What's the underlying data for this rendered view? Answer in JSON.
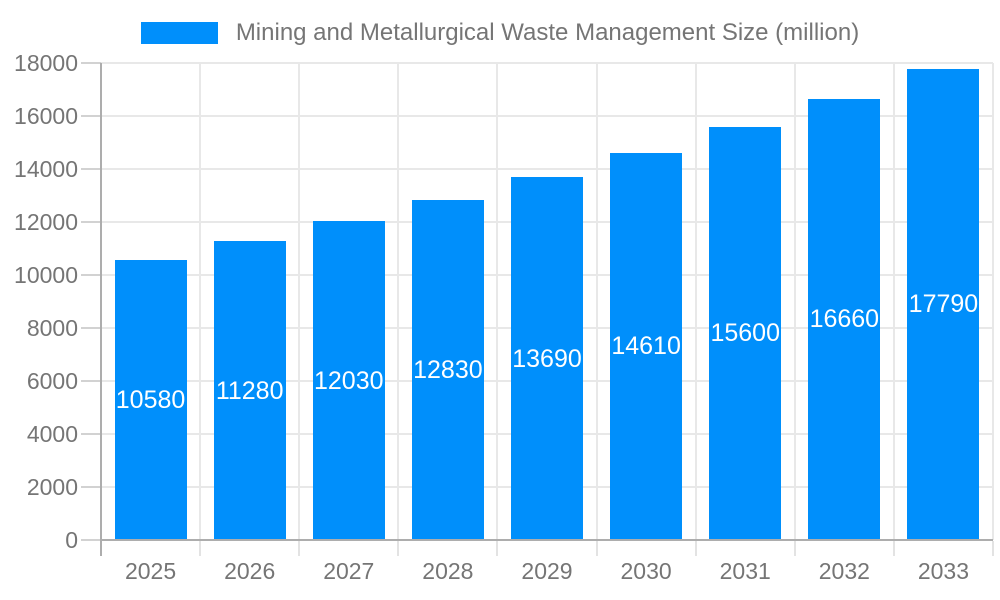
{
  "chart_data": {
    "type": "bar",
    "title": "Mining and Metallurgical Waste Management Size (million)",
    "categories": [
      "2025",
      "2026",
      "2027",
      "2028",
      "2029",
      "2030",
      "2031",
      "2032",
      "2033"
    ],
    "series": [
      {
        "name": "Mining and Metallurgical Waste Management Size (million)",
        "values": [
          10580,
          11280,
          12030,
          12830,
          13690,
          14610,
          15600,
          16660,
          17790
        ]
      }
    ],
    "value_labels": [
      "10580",
      "11280",
      "12030",
      "12830",
      "13690",
      "14610",
      "15600",
      "16660",
      "17790"
    ],
    "xlabel": "",
    "ylabel": "",
    "ylim": [
      0,
      18000
    ],
    "ytick_step": 2000,
    "ytick_labels": [
      "0",
      "2000",
      "4000",
      "6000",
      "8000",
      "10000",
      "12000",
      "14000",
      "16000",
      "18000"
    ],
    "grid": "on",
    "legend_position": "top",
    "colors": {
      "bar": "#008FFB",
      "value_label_text": "#ffffff",
      "axis_text": "#757575",
      "gridline": "#e8e8e8",
      "axis_line": "#adadad"
    }
  }
}
